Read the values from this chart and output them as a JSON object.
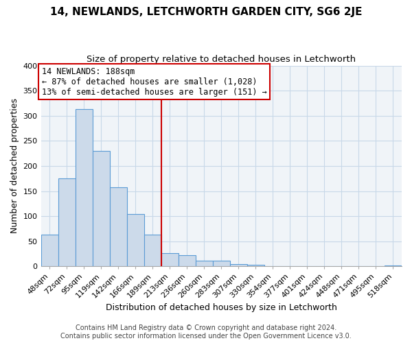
{
  "title": "14, NEWLANDS, LETCHWORTH GARDEN CITY, SG6 2JE",
  "subtitle": "Size of property relative to detached houses in Letchworth",
  "xlabel": "Distribution of detached houses by size in Letchworth",
  "ylabel": "Number of detached properties",
  "bar_labels": [
    "48sqm",
    "72sqm",
    "95sqm",
    "119sqm",
    "142sqm",
    "166sqm",
    "189sqm",
    "213sqm",
    "236sqm",
    "260sqm",
    "283sqm",
    "307sqm",
    "330sqm",
    "354sqm",
    "377sqm",
    "401sqm",
    "424sqm",
    "448sqm",
    "471sqm",
    "495sqm",
    "518sqm"
  ],
  "bar_values": [
    63,
    175,
    313,
    230,
    158,
    104,
    63,
    26,
    22,
    12,
    12,
    5,
    4,
    0,
    0,
    0,
    0,
    0,
    0,
    0,
    2
  ],
  "bar_color": "#ccdaea",
  "bar_edge_color": "#5b9bd5",
  "vline_index": 6,
  "vline_color": "#cc0000",
  "annotation_title": "14 NEWLANDS: 188sqm",
  "annotation_line1": "← 87% of detached houses are smaller (1,028)",
  "annotation_line2": "13% of semi-detached houses are larger (151) →",
  "annotation_box_color": "#ffffff",
  "annotation_box_edge": "#cc0000",
  "ylim": [
    0,
    400
  ],
  "yticks": [
    0,
    50,
    100,
    150,
    200,
    250,
    300,
    350,
    400
  ],
  "footer1": "Contains HM Land Registry data © Crown copyright and database right 2024.",
  "footer2": "Contains public sector information licensed under the Open Government Licence v3.0.",
  "title_fontsize": 11,
  "subtitle_fontsize": 9.5,
  "axis_label_fontsize": 9,
  "tick_fontsize": 8,
  "annotation_fontsize": 8.5,
  "footer_fontsize": 7
}
